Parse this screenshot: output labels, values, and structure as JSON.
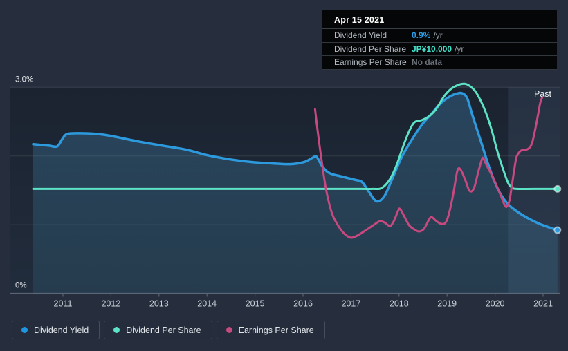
{
  "tooltip": {
    "title": "Apr 15 2021",
    "rows": [
      {
        "label": "Dividend Yield",
        "value": "0.9%",
        "suffix": "/yr",
        "value_color": "#2d9fe8"
      },
      {
        "label": "Dividend Per Share",
        "value": "JP¥10.000",
        "suffix": "/yr",
        "value_color": "#45e3cd"
      },
      {
        "label": "Earnings Per Share",
        "value": "No data",
        "suffix": "",
        "value_color": "#6a7078"
      }
    ]
  },
  "legend": {
    "items": [
      {
        "label": "Dividend Yield",
        "color": "#2196e0"
      },
      {
        "label": "Dividend Per Share",
        "color": "#5ce3c5"
      },
      {
        "label": "Earnings Per Share",
        "color": "#c7497f"
      }
    ]
  },
  "chart_data": {
    "type": "line",
    "title": "Dividend history",
    "y_axis": {
      "unit": "%",
      "range": [
        0,
        3.0
      ],
      "ticks": [
        {
          "label": "3.0%",
          "value": 3.0
        },
        {
          "label": "0%",
          "value": 0
        }
      ],
      "grid_values": [
        3,
        2,
        1
      ]
    },
    "x_axis": {
      "ticks": [
        2011,
        2012,
        2013,
        2014,
        2015,
        2016,
        2017,
        2018,
        2019,
        2020,
        2021
      ]
    },
    "past": {
      "label": "Past",
      "start_year": 2020.27
    },
    "series": [
      {
        "name": "Dividend Yield",
        "color": "#2d9ade",
        "width": 3.5,
        "area_fill": true,
        "end_dot": true,
        "scale": "percent-left-axis",
        "points": [
          [
            2010.38,
            2.17
          ],
          [
            2010.7,
            2.15
          ],
          [
            2010.88,
            2.14
          ],
          [
            2010.99,
            2.25
          ],
          [
            2011.09,
            2.32
          ],
          [
            2011.35,
            2.33
          ],
          [
            2011.71,
            2.32
          ],
          [
            2012.01,
            2.29
          ],
          [
            2012.57,
            2.21
          ],
          [
            2013.07,
            2.15
          ],
          [
            2013.58,
            2.09
          ],
          [
            2014.01,
            2.01
          ],
          [
            2014.48,
            1.95
          ],
          [
            2014.94,
            1.91
          ],
          [
            2015.37,
            1.89
          ],
          [
            2015.73,
            1.88
          ],
          [
            2016.02,
            1.91
          ],
          [
            2016.19,
            1.97
          ],
          [
            2016.28,
            1.99
          ],
          [
            2016.4,
            1.85
          ],
          [
            2016.55,
            1.75
          ],
          [
            2016.81,
            1.7
          ],
          [
            2017.1,
            1.65
          ],
          [
            2017.23,
            1.62
          ],
          [
            2017.37,
            1.48
          ],
          [
            2017.53,
            1.34
          ],
          [
            2017.69,
            1.41
          ],
          [
            2017.86,
            1.67
          ],
          [
            2018.06,
            1.99
          ],
          [
            2018.27,
            2.24
          ],
          [
            2018.47,
            2.45
          ],
          [
            2018.67,
            2.61
          ],
          [
            2018.87,
            2.77
          ],
          [
            2019.07,
            2.87
          ],
          [
            2019.22,
            2.91
          ],
          [
            2019.32,
            2.91
          ],
          [
            2019.42,
            2.84
          ],
          [
            2019.53,
            2.59
          ],
          [
            2019.71,
            2.2
          ],
          [
            2019.88,
            1.83
          ],
          [
            2020.05,
            1.53
          ],
          [
            2020.24,
            1.32
          ],
          [
            2020.44,
            1.2
          ],
          [
            2020.67,
            1.1
          ],
          [
            2020.93,
            1.01
          ],
          [
            2021.3,
            0.92
          ]
        ]
      },
      {
        "name": "Dividend Per Share",
        "color": "#5ce3c5",
        "width": 3,
        "area_fill": false,
        "end_dot": true,
        "scale": "relative-own-axis",
        "points": [
          [
            2010.38,
            1.52
          ],
          [
            2013,
            1.52
          ],
          [
            2016,
            1.52
          ],
          [
            2017.2,
            1.52
          ],
          [
            2017.46,
            1.52
          ],
          [
            2017.63,
            1.53
          ],
          [
            2017.79,
            1.64
          ],
          [
            2017.94,
            1.85
          ],
          [
            2018.08,
            2.13
          ],
          [
            2018.21,
            2.36
          ],
          [
            2018.32,
            2.49
          ],
          [
            2018.47,
            2.52
          ],
          [
            2018.61,
            2.57
          ],
          [
            2018.76,
            2.67
          ],
          [
            2018.93,
            2.86
          ],
          [
            2019.07,
            2.97
          ],
          [
            2019.22,
            3.03
          ],
          [
            2019.36,
            3.05
          ],
          [
            2019.47,
            3.02
          ],
          [
            2019.59,
            2.94
          ],
          [
            2019.71,
            2.79
          ],
          [
            2019.82,
            2.61
          ],
          [
            2019.94,
            2.35
          ],
          [
            2020.05,
            2.06
          ],
          [
            2020.17,
            1.8
          ],
          [
            2020.27,
            1.61
          ],
          [
            2020.35,
            1.54
          ],
          [
            2020.45,
            1.52
          ],
          [
            2020.8,
            1.52
          ],
          [
            2021.3,
            1.52
          ]
        ]
      },
      {
        "name": "Earnings Per Share",
        "color": "#c7497f",
        "width": 3,
        "area_fill": false,
        "end_dot": false,
        "scale": "relative-own-axis",
        "points": [
          [
            2016.25,
            2.68
          ],
          [
            2016.29,
            2.45
          ],
          [
            2016.35,
            2.12
          ],
          [
            2016.41,
            1.82
          ],
          [
            2016.47,
            1.55
          ],
          [
            2016.54,
            1.32
          ],
          [
            2016.61,
            1.15
          ],
          [
            2016.71,
            1.01
          ],
          [
            2016.83,
            0.89
          ],
          [
            2016.93,
            0.83
          ],
          [
            2017.01,
            0.81
          ],
          [
            2017.13,
            0.84
          ],
          [
            2017.29,
            0.91
          ],
          [
            2017.46,
            0.99
          ],
          [
            2017.6,
            1.05
          ],
          [
            2017.7,
            1.03
          ],
          [
            2017.81,
            0.98
          ],
          [
            2017.89,
            1.05
          ],
          [
            2017.98,
            1.2
          ],
          [
            2018.02,
            1.23
          ],
          [
            2018.11,
            1.12
          ],
          [
            2018.21,
            0.99
          ],
          [
            2018.32,
            0.93
          ],
          [
            2018.42,
            0.9
          ],
          [
            2018.52,
            0.94
          ],
          [
            2018.63,
            1.08
          ],
          [
            2018.68,
            1.11
          ],
          [
            2018.78,
            1.05
          ],
          [
            2018.88,
            1.01
          ],
          [
            2018.97,
            1.03
          ],
          [
            2019.04,
            1.16
          ],
          [
            2019.13,
            1.45
          ],
          [
            2019.2,
            1.74
          ],
          [
            2019.24,
            1.82
          ],
          [
            2019.3,
            1.78
          ],
          [
            2019.39,
            1.63
          ],
          [
            2019.47,
            1.49
          ],
          [
            2019.56,
            1.53
          ],
          [
            2019.65,
            1.77
          ],
          [
            2019.72,
            1.94
          ],
          [
            2019.75,
            1.97
          ],
          [
            2019.82,
            1.87
          ],
          [
            2019.91,
            1.75
          ],
          [
            2020.01,
            1.6
          ],
          [
            2020.11,
            1.44
          ],
          [
            2020.19,
            1.3
          ],
          [
            2020.24,
            1.26
          ],
          [
            2020.3,
            1.35
          ],
          [
            2020.35,
            1.57
          ],
          [
            2020.41,
            1.85
          ],
          [
            2020.45,
            1.99
          ],
          [
            2020.51,
            2.06
          ],
          [
            2020.58,
            2.09
          ],
          [
            2020.65,
            2.09
          ],
          [
            2020.73,
            2.13
          ],
          [
            2020.78,
            2.21
          ],
          [
            2020.84,
            2.4
          ],
          [
            2020.9,
            2.62
          ],
          [
            2020.94,
            2.77
          ],
          [
            2020.98,
            2.85
          ]
        ]
      }
    ]
  }
}
